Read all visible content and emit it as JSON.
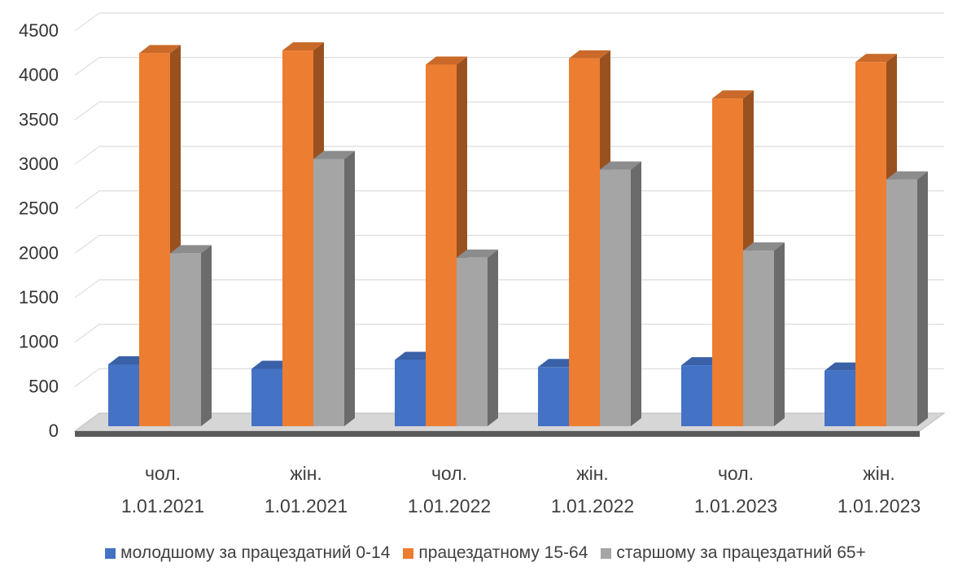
{
  "chart_data": {
    "type": "bar",
    "title": "",
    "xlabel": "",
    "ylabel": "",
    "ylim": [
      0,
      4500
    ],
    "yticks": [
      "0",
      "500",
      "1000",
      "1500",
      "2000",
      "2500",
      "3000",
      "3500",
      "4000",
      "4500"
    ],
    "grid": true,
    "legend_position": "bottom",
    "categories": [
      [
        "чол.",
        "1.01.2021"
      ],
      [
        "жін.",
        "1.01.2021"
      ],
      [
        "чол.",
        "1.01.2022"
      ],
      [
        "жін.",
        "1.01.2022"
      ],
      [
        "чол.",
        "1.01.2023"
      ],
      [
        "жін.",
        "1.01.2023"
      ]
    ],
    "series": [
      {
        "name": "молодшому за працездатний 0-14",
        "color": "#4472C4",
        "values": [
          750,
          700,
          800,
          720,
          740,
          680
        ]
      },
      {
        "name": "працездатному 15-64",
        "color": "#ED7D31",
        "values": [
          4250,
          4280,
          4120,
          4190,
          3740,
          4150
        ]
      },
      {
        "name": "старшому за працездатний 65+",
        "color": "#A5A5A5",
        "values": [
          2000,
          3060,
          1950,
          2940,
          2030,
          2830
        ]
      }
    ]
  }
}
